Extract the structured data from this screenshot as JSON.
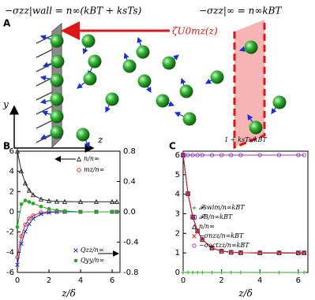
{
  "panel_a": {
    "label": "A",
    "wall_eq": "−σzz|wall = n∞(kBT + ksTs)",
    "far_eq": "−σzz|∞ = n∞kBT",
    "force": "ζU0mz(z)",
    "axis_y": "y",
    "axis_z": "z"
  },
  "chart_data": [
    {
      "type": "line",
      "label": "B",
      "xlabel": "z/δ",
      "x": [
        0,
        0.25,
        0.5,
        0.75,
        1,
        1.5,
        2,
        2.5,
        3,
        4,
        5,
        6,
        6.3
      ],
      "xlim": [
        0,
        6.5
      ],
      "xticks": [
        0,
        2,
        4,
        6
      ],
      "ylim": [
        -6,
        6
      ],
      "yticks": [
        -6,
        -4,
        -2,
        0,
        2,
        4,
        6
      ],
      "y2lim": [
        -0.8,
        0.8
      ],
      "y2ticks": [
        -0.8,
        -0.4,
        {
          "value": 0,
          "label": "0.0"
        },
        0.4,
        0.8
      ],
      "series": [
        {
          "name": "n/n∞",
          "color": "#222222",
          "marker": "triangle",
          "values": [
            6,
            4.03,
            2.84,
            2.12,
            1.68,
            1.25,
            1.09,
            1.03,
            1.01,
            1,
            1,
            1,
            1
          ]
        },
        {
          "name": "mz/n∞",
          "color": "#dd2222",
          "marker": "circle",
          "axis": "y2",
          "values": [
            -0.6,
            -0.32,
            -0.17,
            -0.09,
            -0.05,
            -0.01,
            0,
            0,
            0,
            0,
            0,
            0,
            0
          ]
        },
        {
          "name": "Qzz/n∞",
          "color": "#2233cc",
          "marker": "x",
          "axis": "y2",
          "values": [
            -0.7,
            -0.42,
            -0.26,
            -0.16,
            -0.09,
            -0.03,
            -0.01,
            0,
            0,
            0,
            0,
            0,
            0
          ]
        },
        {
          "name": "Qyy/n∞",
          "color": "#22aa22",
          "marker": "dot",
          "axis": "y2",
          "values": [
            -0.2,
            0.1,
            0.15,
            0.13,
            0.11,
            0.07,
            0.04,
            0.02,
            0.01,
            0,
            0,
            0,
            0
          ]
        }
      ]
    },
    {
      "type": "line",
      "label": "C",
      "xlabel": "z/δ",
      "annotation": "1 + ksTs/kBT",
      "x": [
        0,
        0.25,
        0.5,
        0.75,
        1,
        1.5,
        2,
        2.5,
        3,
        4,
        5,
        6,
        6.3
      ],
      "xlim": [
        0,
        6.5
      ],
      "xticks": [
        0,
        2,
        4,
        6
      ],
      "ylim": [
        0,
        6.2
      ],
      "yticks": [
        0,
        1,
        2,
        3,
        4,
        5,
        6
      ],
      "series": [
        {
          "name": "𝓕swim/n∞kBT",
          "color": "#22aa22",
          "marker": "plus",
          "values": [
            0,
            0,
            0,
            0,
            0,
            0,
            0,
            0,
            0,
            0,
            0,
            0,
            0
          ]
        },
        {
          "name": "𝓕B/n∞kBT",
          "color": "#3333bb",
          "marker": "square",
          "values": [
            6,
            4.03,
            2.84,
            2.12,
            1.68,
            1.25,
            1.09,
            1.03,
            1.01,
            1,
            1,
            1,
            1
          ]
        },
        {
          "name": "n/n∞",
          "color": "#222222",
          "marker": "triangle",
          "values": [
            6,
            4.03,
            2.84,
            2.12,
            1.68,
            1.25,
            1.09,
            1.03,
            1.01,
            1,
            1,
            1,
            1
          ]
        },
        {
          "name": "−σnzz/n∞kBT",
          "color": "#dd2222",
          "marker": "x",
          "values": [
            6,
            4.03,
            2.84,
            2.12,
            1.68,
            1.25,
            1.09,
            1.03,
            1.01,
            1,
            1,
            1,
            1
          ]
        },
        {
          "name": "−σactzz/n∞kBT",
          "color": "#9933bb",
          "marker": "circle",
          "values": [
            6,
            6,
            6,
            6,
            6,
            6,
            6,
            6,
            6,
            6,
            6,
            6,
            6
          ]
        }
      ]
    }
  ]
}
